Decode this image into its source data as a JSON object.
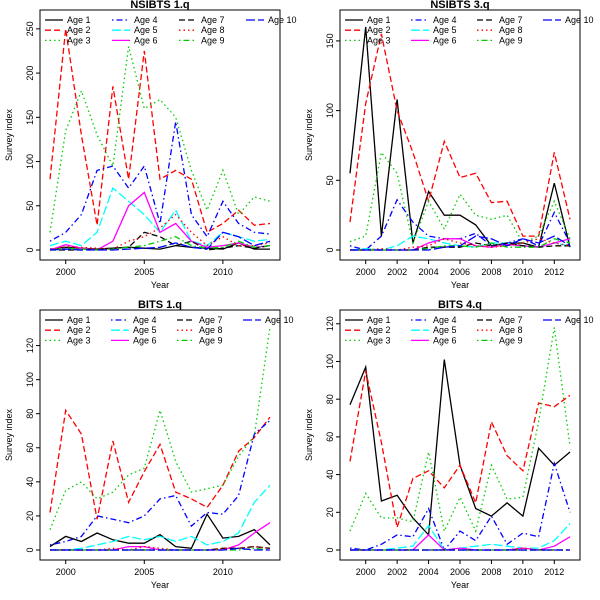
{
  "figure": {
    "background": "#ffffff"
  },
  "legend_entries": [
    {
      "label": "Age 1",
      "color": "#000000",
      "dash": "solid"
    },
    {
      "label": "Age 2",
      "color": "#ff0000",
      "dash": "dashed"
    },
    {
      "label": "Age 3",
      "color": "#00cd00",
      "dash": "dotted"
    },
    {
      "label": "Age 4",
      "color": "#0000ff",
      "dash": "dotdash"
    },
    {
      "label": "Age 5",
      "color": "#00ffff",
      "dash": "longdash"
    },
    {
      "label": "Age 6",
      "color": "#ff00ff",
      "dash": "solid"
    },
    {
      "label": "Age 7",
      "color": "#000000",
      "dash": "dashed"
    },
    {
      "label": "Age 8",
      "color": "#ff0000",
      "dash": "dotted"
    },
    {
      "label": "Age 9",
      "color": "#00cd00",
      "dash": "dotdash"
    },
    {
      "label": "Age 10",
      "color": "#0000ff",
      "dash": "longdash"
    }
  ],
  "chart_data": [
    {
      "type": "line",
      "title": "NSIBTS 1.q",
      "xlabel": "Year",
      "ylabel": "Survey index",
      "xlim": [
        1999,
        2013
      ],
      "ylim": [
        0,
        260
      ],
      "xticks": [
        2000,
        2005,
        2010
      ],
      "yticks": [
        0,
        50,
        100,
        150,
        200,
        250
      ],
      "legend": "top",
      "x": [
        1999,
        2000,
        2001,
        2002,
        2003,
        2004,
        2005,
        2006,
        2007,
        2008,
        2009,
        2010,
        2011,
        2012,
        2013
      ],
      "series": [
        {
          "name": "Age 1",
          "values": [
            1,
            3,
            2,
            1,
            2,
            3,
            2,
            1,
            5,
            3,
            2,
            1,
            8,
            1,
            1
          ]
        },
        {
          "name": "Age 2",
          "values": [
            80,
            250,
            130,
            28,
            185,
            80,
            225,
            80,
            90,
            80,
            20,
            30,
            45,
            28,
            30
          ]
        },
        {
          "name": "Age 3",
          "values": [
            20,
            135,
            180,
            130,
            95,
            230,
            160,
            170,
            150,
            90,
            45,
            90,
            40,
            60,
            55
          ]
        },
        {
          "name": "Age 4",
          "values": [
            10,
            20,
            40,
            90,
            95,
            70,
            95,
            30,
            145,
            40,
            15,
            55,
            30,
            20,
            18
          ]
        },
        {
          "name": "Age 5",
          "values": [
            5,
            10,
            5,
            20,
            70,
            55,
            40,
            20,
            45,
            10,
            5,
            20,
            15,
            10,
            12
          ]
        },
        {
          "name": "Age 6",
          "values": [
            0,
            6,
            2,
            0,
            10,
            50,
            65,
            20,
            30,
            10,
            3,
            5,
            8,
            3,
            5
          ]
        },
        {
          "name": "Age 7",
          "values": [
            0,
            0,
            0,
            1,
            2,
            3,
            20,
            15,
            5,
            10,
            0,
            2,
            5,
            2,
            5
          ]
        },
        {
          "name": "Age 8",
          "values": [
            0,
            4,
            3,
            2,
            1,
            10,
            15,
            25,
            40,
            20,
            5,
            15,
            5,
            5,
            8
          ]
        },
        {
          "name": "Age 9",
          "values": [
            0,
            2,
            1,
            0,
            1,
            3,
            5,
            10,
            15,
            5,
            2,
            3,
            10,
            3,
            5
          ]
        },
        {
          "name": "Age 10",
          "values": [
            0,
            1,
            0,
            0,
            0,
            1,
            2,
            3,
            8,
            3,
            1,
            20,
            15,
            5,
            10
          ]
        }
      ]
    },
    {
      "type": "line",
      "title": "NSIBTS 3.q",
      "xlabel": "Year",
      "ylabel": "Survey index",
      "xlim": [
        1999,
        2013
      ],
      "ylim": [
        0,
        165
      ],
      "xticks": [
        2000,
        2002,
        2004,
        2006,
        2008,
        2010,
        2012
      ],
      "yticks": [
        0,
        50,
        100,
        150
      ],
      "legend": "top",
      "x": [
        1999,
        2000,
        2001,
        2002,
        2003,
        2004,
        2005,
        2006,
        2007,
        2008,
        2009,
        2010,
        2011,
        2012,
        2013
      ],
      "series": [
        {
          "name": "Age 1",
          "values": [
            55,
            160,
            10,
            108,
            5,
            42,
            25,
            25,
            18,
            3,
            5,
            5,
            2,
            48,
            2
          ]
        },
        {
          "name": "Age 2",
          "values": [
            20,
            105,
            155,
            100,
            70,
            35,
            78,
            52,
            55,
            34,
            35,
            10,
            10,
            70,
            22
          ]
        },
        {
          "name": "Age 3",
          "values": [
            6,
            10,
            70,
            55,
            5,
            35,
            15,
            40,
            25,
            22,
            25,
            5,
            10,
            35,
            8
          ]
        },
        {
          "name": "Age 4",
          "values": [
            3,
            0,
            10,
            36,
            20,
            10,
            8,
            8,
            12,
            3,
            5,
            8,
            3,
            27,
            5
          ]
        },
        {
          "name": "Age 5",
          "values": [
            0,
            1,
            0,
            3,
            10,
            8,
            5,
            3,
            2,
            5,
            5,
            3,
            2,
            5,
            3
          ]
        },
        {
          "name": "Age 6",
          "values": [
            0,
            0,
            0,
            0,
            0,
            5,
            8,
            8,
            3,
            2,
            4,
            3,
            2,
            5,
            8
          ]
        },
        {
          "name": "Age 7",
          "values": [
            0,
            0,
            0,
            0,
            0,
            2,
            2,
            2,
            5,
            3,
            5,
            3,
            2,
            3,
            3
          ]
        },
        {
          "name": "Age 8",
          "values": [
            0,
            0,
            1,
            0,
            2,
            3,
            8,
            5,
            3,
            2,
            3,
            5,
            8,
            5,
            3
          ]
        },
        {
          "name": "Age 9",
          "values": [
            0,
            0,
            0,
            0,
            0,
            1,
            3,
            3,
            2,
            5,
            2,
            2,
            2,
            8,
            5
          ]
        },
        {
          "name": "Age 10",
          "values": [
            0,
            0,
            0,
            0,
            0,
            0,
            2,
            3,
            10,
            8,
            3,
            8,
            5,
            10,
            3
          ]
        }
      ]
    },
    {
      "type": "line",
      "title": "BITS 1.q",
      "xlabel": "Year",
      "ylabel": "Survey index",
      "xlim": [
        1999,
        2013
      ],
      "ylim": [
        0,
        135
      ],
      "xticks": [
        2000,
        2005,
        2010
      ],
      "yticks": [
        0,
        20,
        40,
        60,
        80,
        100,
        120
      ],
      "legend": "top",
      "x": [
        1999,
        2000,
        2001,
        2002,
        2003,
        2004,
        2005,
        2006,
        2007,
        2008,
        2009,
        2010,
        2011,
        2012,
        2013
      ],
      "series": [
        {
          "name": "Age 1",
          "values": [
            2,
            8,
            5,
            10,
            6,
            4,
            4,
            9,
            2,
            1,
            21,
            7,
            8,
            12,
            3
          ]
        },
        {
          "name": "Age 2",
          "values": [
            22,
            82,
            68,
            18,
            64,
            28,
            46,
            62,
            34,
            30,
            25,
            38,
            58,
            66,
            78
          ]
        },
        {
          "name": "Age 3",
          "values": [
            12,
            35,
            40,
            30,
            34,
            44,
            48,
            82,
            52,
            34,
            36,
            38,
            55,
            67,
            131
          ]
        },
        {
          "name": "Age 4",
          "values": [
            3,
            5,
            8,
            20,
            18,
            16,
            20,
            30,
            32,
            14,
            22,
            21,
            32,
            68,
            76
          ]
        },
        {
          "name": "Age 5",
          "values": [
            0,
            0,
            1,
            3,
            5,
            8,
            6,
            8,
            5,
            8,
            3,
            5,
            10,
            28,
            38
          ]
        },
        {
          "name": "Age 6",
          "values": [
            0,
            0,
            0,
            0,
            0,
            2,
            2,
            0,
            0,
            0,
            0,
            0,
            3,
            10,
            16
          ]
        },
        {
          "name": "Age 7",
          "values": [
            0,
            0,
            0,
            0,
            0,
            0,
            0,
            0,
            0,
            0,
            0,
            1,
            1,
            2,
            1
          ]
        },
        {
          "name": "Age 8",
          "values": [
            0,
            0,
            0,
            0,
            1,
            0,
            2,
            1,
            0,
            0,
            0,
            1,
            1,
            2,
            1
          ]
        },
        {
          "name": "Age 9",
          "values": [
            0,
            0,
            0,
            0,
            0,
            0,
            0,
            0,
            0,
            0,
            0,
            0,
            0,
            1,
            0
          ]
        },
        {
          "name": "Age 10",
          "values": [
            0,
            0,
            0,
            0,
            0,
            0,
            0,
            0,
            0,
            0,
            0,
            0,
            1,
            0,
            0
          ]
        }
      ]
    },
    {
      "type": "line",
      "title": "BITS 4.q",
      "xlabel": "Year",
      "ylabel": "Survey index",
      "xlim": [
        1999,
        2013
      ],
      "ylim": [
        0,
        122
      ],
      "xticks": [
        2000,
        2002,
        2004,
        2006,
        2008,
        2010,
        2012
      ],
      "yticks": [
        0,
        20,
        40,
        60,
        80,
        100,
        120
      ],
      "legend": "top",
      "x": [
        1999,
        2000,
        2001,
        2002,
        2003,
        2004,
        2005,
        2006,
        2007,
        2008,
        2009,
        2010,
        2011,
        2012,
        2013
      ],
      "series": [
        {
          "name": "Age 1",
          "values": [
            77,
            97,
            26,
            29,
            17,
            8,
            101,
            45,
            22,
            18,
            25,
            18,
            54,
            45,
            52
          ]
        },
        {
          "name": "Age 2",
          "values": [
            47,
            95,
            57,
            12,
            38,
            42,
            33,
            45,
            25,
            68,
            50,
            42,
            78,
            76,
            82
          ]
        },
        {
          "name": "Age 3",
          "values": [
            10,
            30,
            17,
            17,
            15,
            52,
            10,
            28,
            10,
            45,
            27,
            28,
            68,
            118,
            55
          ]
        },
        {
          "name": "Age 4",
          "values": [
            1,
            0,
            3,
            8,
            7,
            22,
            0,
            10,
            5,
            18,
            3,
            9,
            7,
            46,
            20
          ]
        },
        {
          "name": "Age 5",
          "values": [
            0,
            0,
            0,
            1,
            2,
            13,
            0,
            1,
            2,
            3,
            2,
            1,
            1,
            5,
            14
          ]
        },
        {
          "name": "Age 6",
          "values": [
            0,
            0,
            0,
            0,
            0,
            8,
            0,
            1,
            0,
            0,
            0,
            1,
            0,
            2,
            7
          ]
        },
        {
          "name": "Age 7",
          "values": [
            0,
            0,
            0,
            0,
            0,
            0,
            0,
            0,
            0,
            0,
            0,
            0,
            0,
            0,
            0
          ]
        },
        {
          "name": "Age 8",
          "values": [
            0,
            0,
            0,
            0,
            0,
            0,
            0,
            0,
            0,
            0,
            0,
            1,
            0,
            0,
            0
          ]
        },
        {
          "name": "Age 9",
          "values": [
            0,
            0,
            0,
            0,
            0,
            0,
            0,
            0,
            0,
            0,
            0,
            0,
            0,
            0,
            0
          ]
        },
        {
          "name": "Age 10",
          "values": [
            0,
            0,
            0,
            0,
            0,
            0,
            0,
            0,
            0,
            0,
            0,
            0,
            0,
            0,
            0
          ]
        }
      ]
    }
  ]
}
